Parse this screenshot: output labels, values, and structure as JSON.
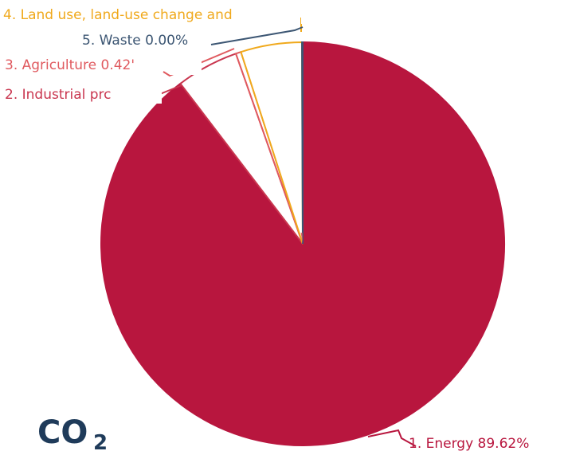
{
  "chart_data": {
    "type": "pie",
    "title_main": "CO",
    "title_sub": "2",
    "slices": [
      {
        "label": "1. Energy 89.62%",
        "value": 89.62,
        "color": "#b8163e",
        "fill": "#b8163e"
      },
      {
        "label": "2. Industrial prc",
        "value": 5.0,
        "color": "#c9364f",
        "fill": "#ffffff"
      },
      {
        "label": "3. Agriculture 0.42'",
        "value": 0.42,
        "color": "#e05a5f",
        "fill": "#ffffff"
      },
      {
        "label": "4. Land use, land-use change and",
        "value": 4.9,
        "color": "#f0a91c",
        "fill": "#ffffff"
      },
      {
        "label": "5. Waste 0.00%",
        "value": 0.06,
        "color": "#3c5673",
        "fill": "#ffffff"
      }
    ]
  }
}
